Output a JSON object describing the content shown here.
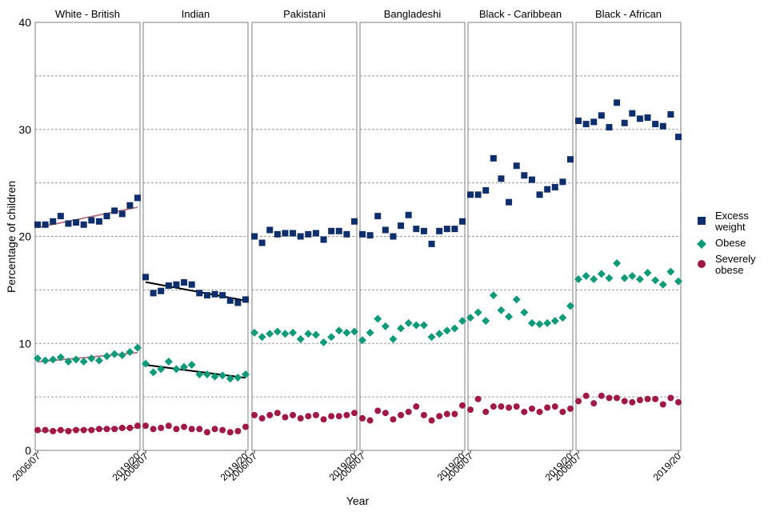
{
  "colors": {
    "excess_weight": "#0E2F6B",
    "obese": "#0F9A7A",
    "severely_obese": "#A01A45",
    "trend_white_british": "#B07080",
    "trend_indian": "#000000",
    "grid": "#9a9a9a",
    "panel_border": "#7f7f7f"
  },
  "chart_data": {
    "type": "scatter",
    "xlabel": "Year",
    "ylabel": "Percentage of children",
    "ylim": [
      0,
      40
    ],
    "y_ticks": [
      "0",
      "10",
      "20",
      "30",
      "40"
    ],
    "x_tick_first": "2006/07",
    "x_tick_last": "2019/20",
    "x": [
      "2006/07",
      "2007/08",
      "2008/09",
      "2009/10",
      "2010/11",
      "2011/12",
      "2012/13",
      "2013/14",
      "2014/15",
      "2015/16",
      "2016/17",
      "2017/18",
      "2018/19",
      "2019/20"
    ],
    "grid": "horizontal dashed",
    "legend_position": "right",
    "legend": [
      {
        "key": "excess_weight",
        "label_lines": [
          "Excess",
          "weight"
        ],
        "marker": "square"
      },
      {
        "key": "obese",
        "label_lines": [
          "Obese"
        ],
        "marker": "diamond"
      },
      {
        "key": "severely_obese",
        "label_lines": [
          "Severely",
          "obese"
        ],
        "marker": "circle"
      }
    ],
    "panels": [
      {
        "title": "White - British",
        "trend": true,
        "excess_weight": [
          21.1,
          21.1,
          21.4,
          21.9,
          21.2,
          21.3,
          21.1,
          21.5,
          21.4,
          21.9,
          22.4,
          22.1,
          22.9,
          23.6
        ],
        "obese": [
          8.6,
          8.4,
          8.5,
          8.7,
          8.3,
          8.5,
          8.3,
          8.6,
          8.4,
          8.8,
          9.0,
          8.9,
          9.2,
          9.6
        ],
        "severely_obese": [
          1.9,
          1.9,
          1.8,
          1.9,
          1.8,
          1.9,
          1.9,
          1.9,
          2.0,
          2.0,
          2.0,
          2.1,
          2.1,
          2.3
        ]
      },
      {
        "title": "Indian",
        "trend": true,
        "excess_weight": [
          16.2,
          14.7,
          14.9,
          15.4,
          15.5,
          15.7,
          15.5,
          14.7,
          14.5,
          14.6,
          14.5,
          14.0,
          13.8,
          14.1
        ],
        "obese": [
          8.1,
          7.3,
          7.6,
          8.3,
          7.6,
          7.8,
          8.0,
          7.1,
          7.1,
          6.9,
          7.0,
          6.7,
          6.8,
          7.1
        ],
        "severely_obese": [
          2.3,
          2.0,
          2.1,
          2.3,
          2.0,
          2.2,
          2.0,
          2.0,
          1.7,
          2.0,
          1.9,
          1.7,
          1.8,
          2.2
        ]
      },
      {
        "title": "Pakistani",
        "trend": false,
        "excess_weight": [
          20.0,
          19.4,
          20.6,
          20.2,
          20.3,
          20.3,
          20.0,
          20.2,
          20.3,
          19.7,
          20.5,
          20.5,
          20.2,
          21.4
        ],
        "obese": [
          11.0,
          10.6,
          10.9,
          11.1,
          10.9,
          11.0,
          10.4,
          10.9,
          10.8,
          10.1,
          10.6,
          11.2,
          11.0,
          11.1
        ],
        "severely_obese": [
          3.3,
          3.0,
          3.3,
          3.5,
          3.1,
          3.3,
          3.0,
          3.2,
          3.3,
          2.9,
          3.2,
          3.2,
          3.3,
          3.5
        ]
      },
      {
        "title": "Bangladeshi",
        "trend": false,
        "excess_weight": [
          20.2,
          20.1,
          21.9,
          20.6,
          20.0,
          21.0,
          22.0,
          20.7,
          20.5,
          19.3,
          20.5,
          20.7,
          20.7,
          21.4
        ],
        "obese": [
          10.3,
          11.0,
          12.3,
          11.6,
          10.4,
          11.4,
          11.9,
          11.7,
          11.7,
          10.6,
          10.9,
          11.2,
          11.4,
          12.1
        ],
        "severely_obese": [
          3.0,
          2.8,
          3.7,
          3.5,
          2.9,
          3.3,
          3.6,
          4.1,
          3.3,
          2.8,
          3.2,
          3.4,
          3.4,
          4.2
        ]
      },
      {
        "title": "Black - Caribbean",
        "trend": false,
        "excess_weight": [
          23.9,
          23.9,
          24.3,
          27.3,
          25.4,
          23.2,
          26.6,
          25.7,
          25.3,
          23.9,
          24.4,
          24.6,
          25.1,
          27.2
        ],
        "obese": [
          12.4,
          12.9,
          12.1,
          14.5,
          13.1,
          12.5,
          14.1,
          12.9,
          11.9,
          11.8,
          11.9,
          12.1,
          12.4,
          13.5
        ],
        "severely_obese": [
          3.8,
          4.8,
          3.6,
          4.1,
          4.1,
          4.0,
          4.1,
          3.6,
          3.9,
          3.6,
          4.0,
          4.1,
          3.6,
          3.9
        ]
      },
      {
        "title": "Black - African",
        "trend": false,
        "excess_weight": [
          30.8,
          30.5,
          30.7,
          31.3,
          30.2,
          32.5,
          30.6,
          31.5,
          31.0,
          31.1,
          30.5,
          30.3,
          31.4,
          29.3
        ],
        "obese": [
          16.0,
          16.3,
          16.0,
          16.5,
          16.1,
          17.5,
          16.1,
          16.3,
          16.0,
          16.6,
          15.9,
          15.5,
          16.7,
          15.8
        ],
        "severely_obese": [
          4.6,
          5.1,
          4.4,
          5.1,
          4.9,
          4.9,
          4.6,
          4.5,
          4.7,
          4.8,
          4.8,
          4.3,
          4.9,
          4.5
        ]
      }
    ]
  }
}
